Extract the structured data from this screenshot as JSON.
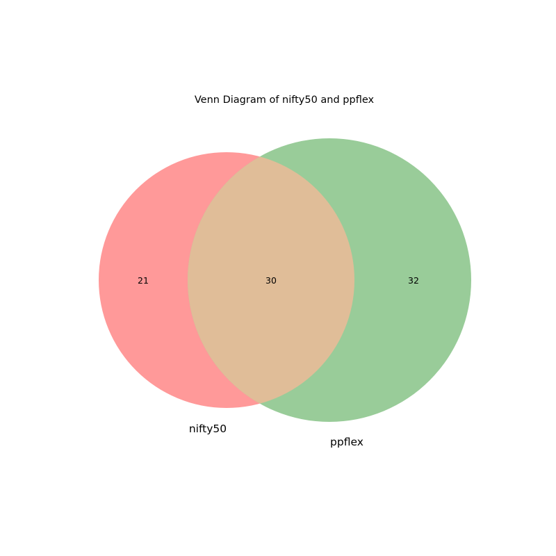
{
  "title": "Venn Diagram of nifty50 and ppflex",
  "sets": [
    {
      "name": "nifty50",
      "color": "#ff9999"
    },
    {
      "name": "ppflex",
      "color": "#99cc99"
    }
  ],
  "intersection_color": "#e0bd98",
  "chart_data": {
    "type": "venn",
    "title": "Venn Diagram of nifty50 and ppflex",
    "sets": [
      "nifty50",
      "ppflex"
    ],
    "regions": {
      "nifty50_only": 21,
      "both": 30,
      "ppflex_only": 32
    }
  }
}
